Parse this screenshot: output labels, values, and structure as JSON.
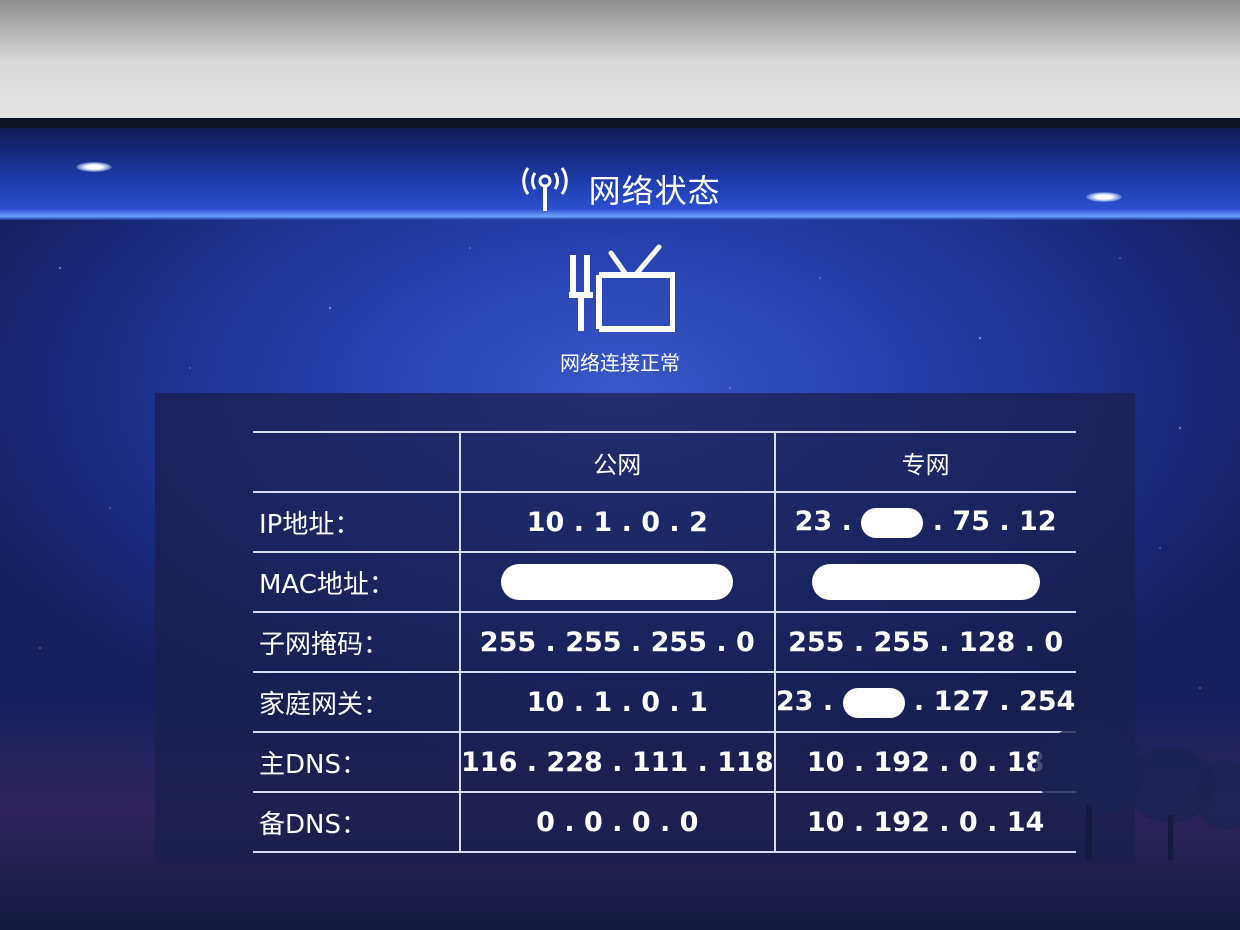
{
  "header": {
    "title": "网络状态",
    "title_icon": "wifi-antenna-icon"
  },
  "status": {
    "icon": "tv-antenna-icon",
    "text": "网络连接正常"
  },
  "table": {
    "columns": [
      "公网",
      "专网"
    ],
    "rows": [
      {
        "label": "IP地址：",
        "public": "10 . 1 . 0 . 2",
        "private_prefix": "23 .",
        "private_suffix": ". 75 . 12"
      },
      {
        "label": "MAC地址："
      },
      {
        "label": "子网掩码：",
        "public": "255 . 255 . 255 . 0",
        "private": "255 . 255 . 128 . 0"
      },
      {
        "label": "家庭网关：",
        "public": "10 . 1 . 0 . 1",
        "private_prefix": "23 .",
        "private_suffix": ". 127 . 254"
      },
      {
        "label": "主DNS：",
        "public": "116 . 228 . 111 . 118",
        "private": "10 . 192 . 0 . 18"
      },
      {
        "label": "备DNS：",
        "public": "0 . 0 . 0 . 0",
        "private": "10 . 192 . 0 . 14"
      }
    ]
  },
  "colors": {
    "screen_blue": "#2742b0",
    "title_bar_glow": "#6aa0ff",
    "panel_bg": "#191e4b",
    "text": "#ffffff"
  }
}
